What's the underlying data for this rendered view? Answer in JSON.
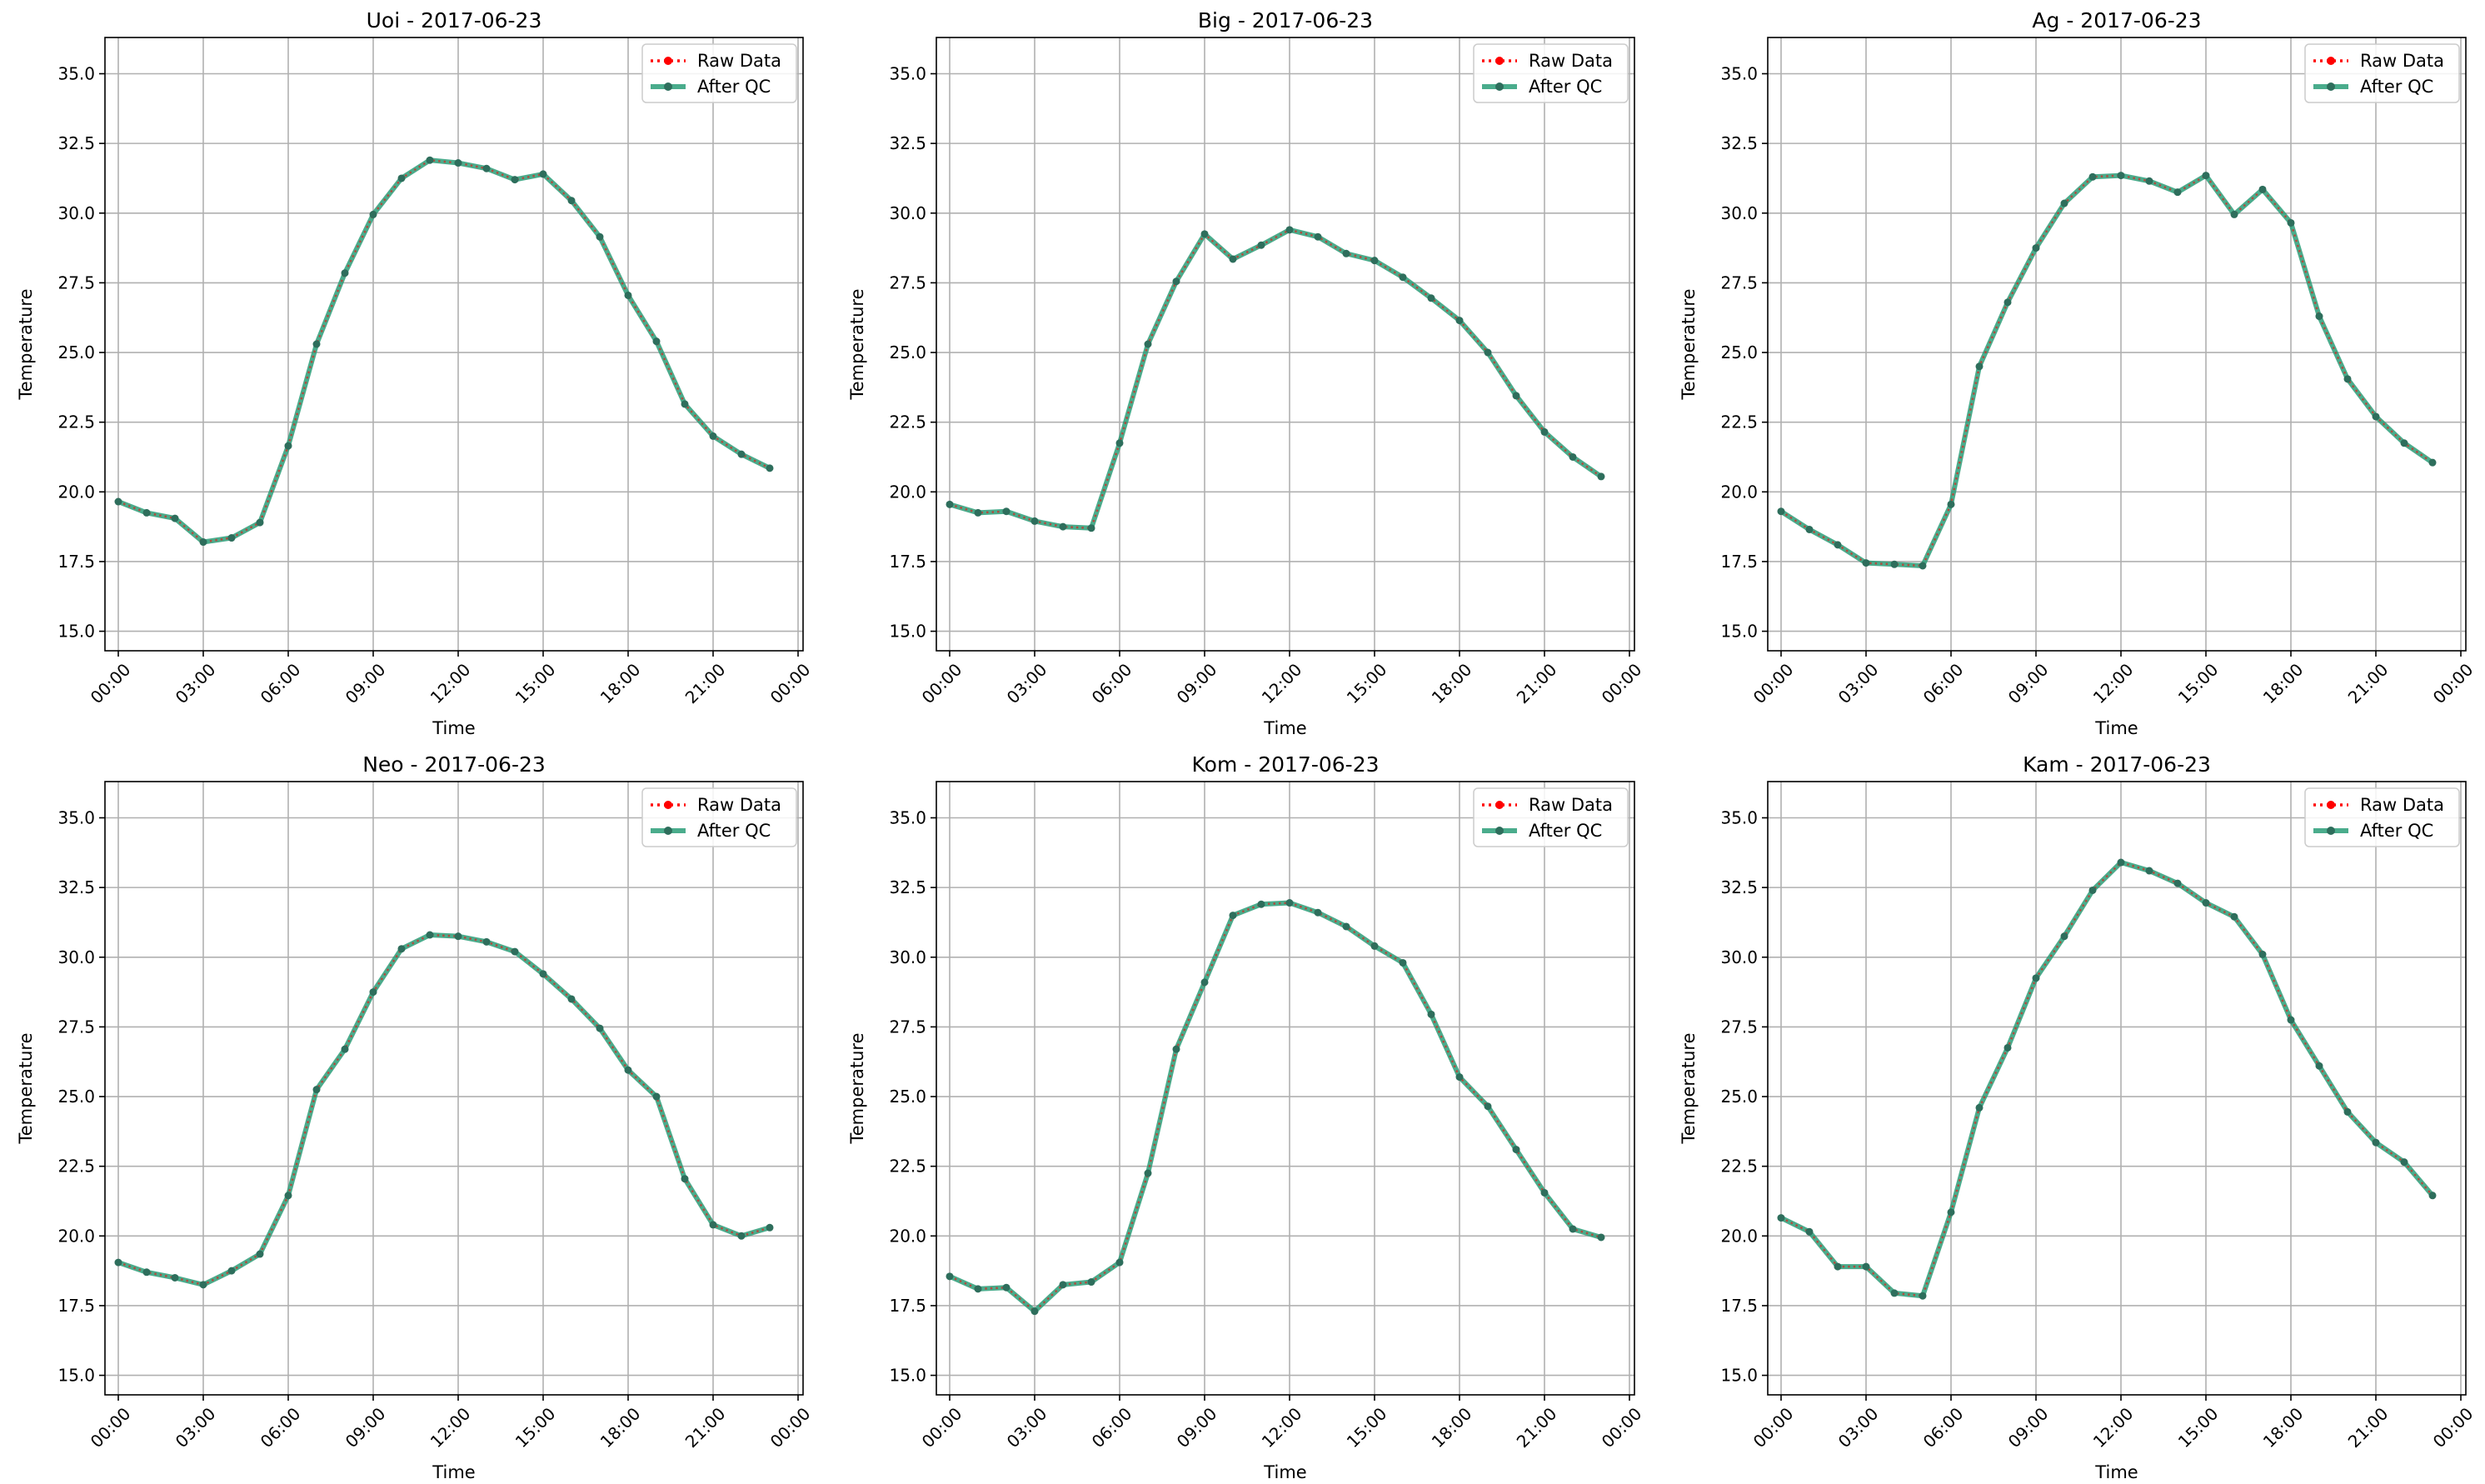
{
  "chart_data": [
    {
      "type": "line",
      "title": "Uoi - 2017-06-23",
      "xlabel": "Time",
      "ylabel": "Temperature",
      "x": [
        "00:00",
        "01:00",
        "02:00",
        "03:00",
        "04:00",
        "05:00",
        "06:00",
        "07:00",
        "08:00",
        "09:00",
        "10:00",
        "11:00",
        "12:00",
        "13:00",
        "14:00",
        "15:00",
        "16:00",
        "17:00",
        "18:00",
        "19:00",
        "20:00",
        "21:00",
        "22:00",
        "23:00"
      ],
      "xticks": [
        "00:00",
        "03:00",
        "06:00",
        "09:00",
        "12:00",
        "15:00",
        "18:00",
        "21:00",
        "00:00"
      ],
      "yticks": [
        "15.0",
        "17.5",
        "20.0",
        "22.5",
        "25.0",
        "27.5",
        "30.0",
        "32.5",
        "35.0"
      ],
      "ylim": [
        14.3,
        36.3
      ],
      "grid": true,
      "legend": "top-right",
      "series": [
        {
          "name": "Raw Data",
          "color": "#ff0000",
          "style": "dotted",
          "values": [
            19.65,
            19.25,
            19.05,
            18.2,
            18.35,
            18.9,
            21.65,
            25.3,
            27.85,
            29.95,
            31.25,
            31.9,
            31.8,
            31.6,
            31.2,
            31.4,
            30.45,
            29.15,
            27.05,
            25.4,
            23.15,
            22.0,
            21.35,
            20.85
          ]
        },
        {
          "name": "After QC",
          "color": "#2a9d78",
          "style": "solid",
          "values": [
            19.65,
            19.25,
            19.05,
            18.2,
            18.35,
            18.9,
            21.65,
            25.3,
            27.85,
            29.95,
            31.25,
            31.9,
            31.8,
            31.6,
            31.2,
            31.4,
            30.45,
            29.15,
            27.05,
            25.4,
            23.15,
            22.0,
            21.35,
            20.85
          ]
        }
      ]
    },
    {
      "type": "line",
      "title": "Big - 2017-06-23",
      "xlabel": "Time",
      "ylabel": "Temperature",
      "x": [
        "00:00",
        "01:00",
        "02:00",
        "03:00",
        "04:00",
        "05:00",
        "06:00",
        "07:00",
        "08:00",
        "09:00",
        "10:00",
        "11:00",
        "12:00",
        "13:00",
        "14:00",
        "15:00",
        "16:00",
        "17:00",
        "18:00",
        "19:00",
        "20:00",
        "21:00",
        "22:00",
        "23:00"
      ],
      "xticks": [
        "00:00",
        "03:00",
        "06:00",
        "09:00",
        "12:00",
        "15:00",
        "18:00",
        "21:00",
        "00:00"
      ],
      "yticks": [
        "15.0",
        "17.5",
        "20.0",
        "22.5",
        "25.0",
        "27.5",
        "30.0",
        "32.5",
        "35.0"
      ],
      "ylim": [
        14.3,
        36.3
      ],
      "grid": true,
      "legend": "top-right",
      "series": [
        {
          "name": "Raw Data",
          "color": "#ff0000",
          "style": "dotted",
          "values": [
            19.55,
            19.25,
            19.3,
            18.95,
            18.75,
            18.7,
            21.75,
            25.3,
            27.55,
            29.25,
            28.35,
            28.85,
            29.4,
            29.15,
            28.55,
            28.3,
            27.7,
            26.95,
            26.15,
            25.0,
            23.45,
            22.15,
            21.25,
            20.55
          ]
        },
        {
          "name": "After QC",
          "color": "#2a9d78",
          "style": "solid",
          "values": [
            19.55,
            19.25,
            19.3,
            18.95,
            18.75,
            18.7,
            21.75,
            25.3,
            27.55,
            29.25,
            28.35,
            28.85,
            29.4,
            29.15,
            28.55,
            28.3,
            27.7,
            26.95,
            26.15,
            25.0,
            23.45,
            22.15,
            21.25,
            20.55
          ]
        }
      ]
    },
    {
      "type": "line",
      "title": "Ag - 2017-06-23",
      "xlabel": "Time",
      "ylabel": "Temperature",
      "x": [
        "00:00",
        "01:00",
        "02:00",
        "03:00",
        "04:00",
        "05:00",
        "06:00",
        "07:00",
        "08:00",
        "09:00",
        "10:00",
        "11:00",
        "12:00",
        "13:00",
        "14:00",
        "15:00",
        "16:00",
        "17:00",
        "18:00",
        "19:00",
        "20:00",
        "21:00",
        "22:00",
        "23:00"
      ],
      "xticks": [
        "00:00",
        "03:00",
        "06:00",
        "09:00",
        "12:00",
        "15:00",
        "18:00",
        "21:00",
        "00:00"
      ],
      "yticks": [
        "15.0",
        "17.5",
        "20.0",
        "22.5",
        "25.0",
        "27.5",
        "30.0",
        "32.5",
        "35.0"
      ],
      "ylim": [
        14.3,
        36.3
      ],
      "grid": true,
      "legend": "top-right",
      "series": [
        {
          "name": "Raw Data",
          "color": "#ff0000",
          "style": "dotted",
          "values": [
            19.3,
            18.65,
            18.1,
            17.45,
            17.4,
            17.35,
            19.55,
            24.5,
            26.8,
            28.75,
            30.35,
            31.3,
            31.35,
            31.15,
            30.75,
            31.35,
            29.95,
            30.85,
            29.65,
            26.3,
            24.05,
            22.7,
            21.75,
            21.05
          ]
        },
        {
          "name": "After QC",
          "color": "#2a9d78",
          "style": "solid",
          "values": [
            19.3,
            18.65,
            18.1,
            17.45,
            17.4,
            17.35,
            19.55,
            24.5,
            26.8,
            28.75,
            30.35,
            31.3,
            31.35,
            31.15,
            30.75,
            31.35,
            29.95,
            30.85,
            29.65,
            26.3,
            24.05,
            22.7,
            21.75,
            21.05
          ]
        }
      ]
    },
    {
      "type": "line",
      "title": "Neo - 2017-06-23",
      "xlabel": "Time",
      "ylabel": "Temperature",
      "x": [
        "00:00",
        "01:00",
        "02:00",
        "03:00",
        "04:00",
        "05:00",
        "06:00",
        "07:00",
        "08:00",
        "09:00",
        "10:00",
        "11:00",
        "12:00",
        "13:00",
        "14:00",
        "15:00",
        "16:00",
        "17:00",
        "18:00",
        "19:00",
        "20:00",
        "21:00",
        "22:00",
        "23:00"
      ],
      "xticks": [
        "00:00",
        "03:00",
        "06:00",
        "09:00",
        "12:00",
        "15:00",
        "18:00",
        "21:00",
        "00:00"
      ],
      "yticks": [
        "15.0",
        "17.5",
        "20.0",
        "22.5",
        "25.0",
        "27.5",
        "30.0",
        "32.5",
        "35.0"
      ],
      "ylim": [
        14.3,
        36.3
      ],
      "grid": true,
      "legend": "top-right",
      "series": [
        {
          "name": "Raw Data",
          "color": "#ff0000",
          "style": "dotted",
          "values": [
            19.05,
            18.7,
            18.5,
            18.25,
            18.75,
            19.35,
            21.45,
            25.25,
            26.7,
            28.75,
            30.3,
            30.8,
            30.75,
            30.55,
            30.2,
            29.4,
            28.5,
            27.45,
            25.95,
            25.0,
            22.05,
            20.4,
            20.0,
            20.3
          ]
        },
        {
          "name": "After QC",
          "color": "#2a9d78",
          "style": "solid",
          "values": [
            19.05,
            18.7,
            18.5,
            18.25,
            18.75,
            19.35,
            21.45,
            25.25,
            26.7,
            28.75,
            30.3,
            30.8,
            30.75,
            30.55,
            30.2,
            29.4,
            28.5,
            27.45,
            25.95,
            25.0,
            22.05,
            20.4,
            20.0,
            20.3
          ]
        }
      ]
    },
    {
      "type": "line",
      "title": "Kom - 2017-06-23",
      "xlabel": "Time",
      "ylabel": "Temperature",
      "x": [
        "00:00",
        "01:00",
        "02:00",
        "03:00",
        "04:00",
        "05:00",
        "06:00",
        "07:00",
        "08:00",
        "09:00",
        "10:00",
        "11:00",
        "12:00",
        "13:00",
        "14:00",
        "15:00",
        "16:00",
        "17:00",
        "18:00",
        "19:00",
        "20:00",
        "21:00",
        "22:00",
        "23:00"
      ],
      "xticks": [
        "00:00",
        "03:00",
        "06:00",
        "09:00",
        "12:00",
        "15:00",
        "18:00",
        "21:00",
        "00:00"
      ],
      "yticks": [
        "15.0",
        "17.5",
        "20.0",
        "22.5",
        "25.0",
        "27.5",
        "30.0",
        "32.5",
        "35.0"
      ],
      "ylim": [
        14.3,
        36.3
      ],
      "grid": true,
      "legend": "top-right",
      "series": [
        {
          "name": "Raw Data",
          "color": "#ff0000",
          "style": "dotted",
          "values": [
            18.55,
            18.1,
            18.15,
            17.3,
            18.25,
            18.35,
            19.05,
            22.25,
            26.7,
            29.1,
            31.5,
            31.9,
            31.95,
            31.6,
            31.1,
            30.4,
            29.8,
            27.95,
            25.7,
            24.65,
            23.1,
            21.55,
            20.25,
            19.95
          ]
        },
        {
          "name": "After QC",
          "color": "#2a9d78",
          "style": "solid",
          "values": [
            18.55,
            18.1,
            18.15,
            17.3,
            18.25,
            18.35,
            19.05,
            22.25,
            26.7,
            29.1,
            31.5,
            31.9,
            31.95,
            31.6,
            31.1,
            30.4,
            29.8,
            27.95,
            25.7,
            24.65,
            23.1,
            21.55,
            20.25,
            19.95
          ]
        }
      ]
    },
    {
      "type": "line",
      "title": "Kam - 2017-06-23",
      "xlabel": "Time",
      "ylabel": "Temperature",
      "x": [
        "00:00",
        "01:00",
        "02:00",
        "03:00",
        "04:00",
        "05:00",
        "06:00",
        "07:00",
        "08:00",
        "09:00",
        "10:00",
        "11:00",
        "12:00",
        "13:00",
        "14:00",
        "15:00",
        "16:00",
        "17:00",
        "18:00",
        "19:00",
        "20:00",
        "21:00",
        "22:00",
        "23:00"
      ],
      "xticks": [
        "00:00",
        "03:00",
        "06:00",
        "09:00",
        "12:00",
        "15:00",
        "18:00",
        "21:00",
        "00:00"
      ],
      "yticks": [
        "15.0",
        "17.5",
        "20.0",
        "22.5",
        "25.0",
        "27.5",
        "30.0",
        "32.5",
        "35.0"
      ],
      "ylim": [
        14.3,
        36.3
      ],
      "grid": true,
      "legend": "top-right",
      "series": [
        {
          "name": "Raw Data",
          "color": "#ff0000",
          "style": "dotted",
          "values": [
            20.65,
            20.15,
            18.9,
            18.9,
            17.95,
            17.85,
            20.85,
            24.6,
            26.75,
            29.25,
            30.75,
            32.4,
            33.4,
            33.1,
            32.65,
            31.95,
            31.45,
            30.1,
            27.75,
            26.1,
            24.45,
            23.35,
            22.65,
            21.45
          ]
        },
        {
          "name": "After QC",
          "color": "#2a9d78",
          "style": "solid",
          "values": [
            20.65,
            20.15,
            18.9,
            18.9,
            17.95,
            17.85,
            20.85,
            24.6,
            26.75,
            29.25,
            30.75,
            32.4,
            33.4,
            33.1,
            32.65,
            31.95,
            31.45,
            30.1,
            27.75,
            26.1,
            24.45,
            23.35,
            22.65,
            21.45
          ]
        }
      ]
    }
  ]
}
